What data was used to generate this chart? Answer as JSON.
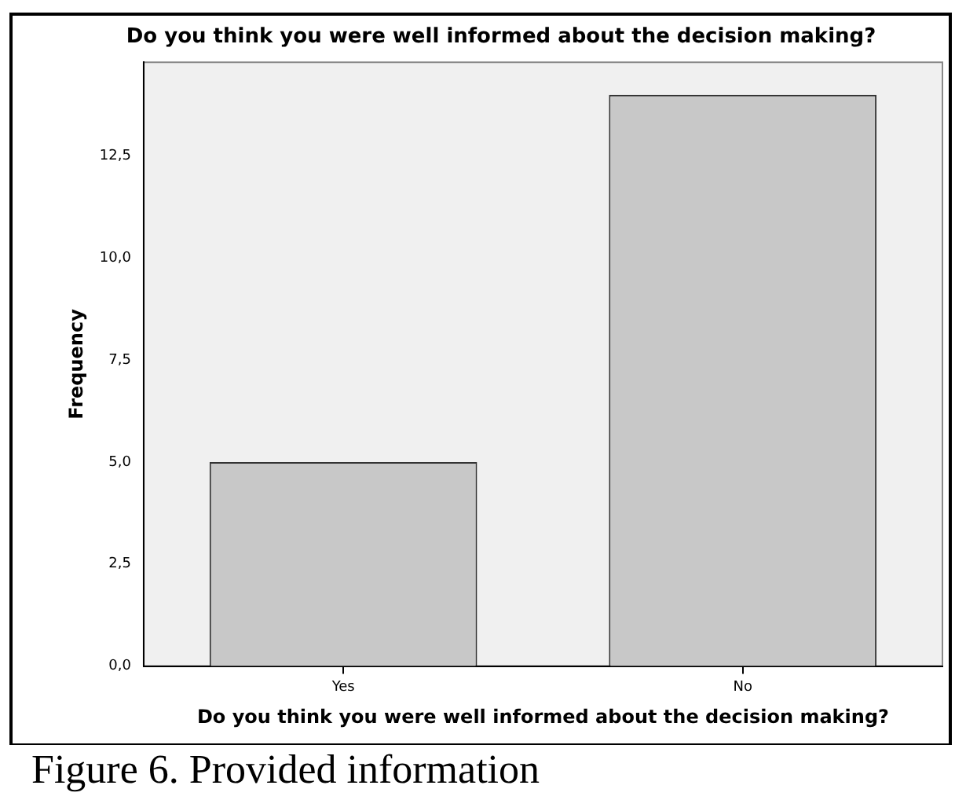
{
  "chart_data": {
    "type": "bar",
    "title": "Do you think you were well informed about the decision making?",
    "xlabel": "Do you think you were well informed about the decision making?",
    "ylabel": "Frequency",
    "categories": [
      "Yes",
      "No"
    ],
    "values": [
      5,
      14
    ],
    "color": "#c8c8c8",
    "ylim": [
      0,
      14.8
    ],
    "yticks": [
      {
        "value": 0,
        "label": "0,0"
      },
      {
        "value": 2.5,
        "label": "2,5"
      },
      {
        "value": 5,
        "label": "5,0"
      },
      {
        "value": 7.5,
        "label": "7,5"
      },
      {
        "value": 10,
        "label": "10,0"
      },
      {
        "value": 12.5,
        "label": "12,5"
      }
    ],
    "grid": false,
    "legend": false,
    "annotations": [
      "Figure 6. Provided information"
    ]
  }
}
